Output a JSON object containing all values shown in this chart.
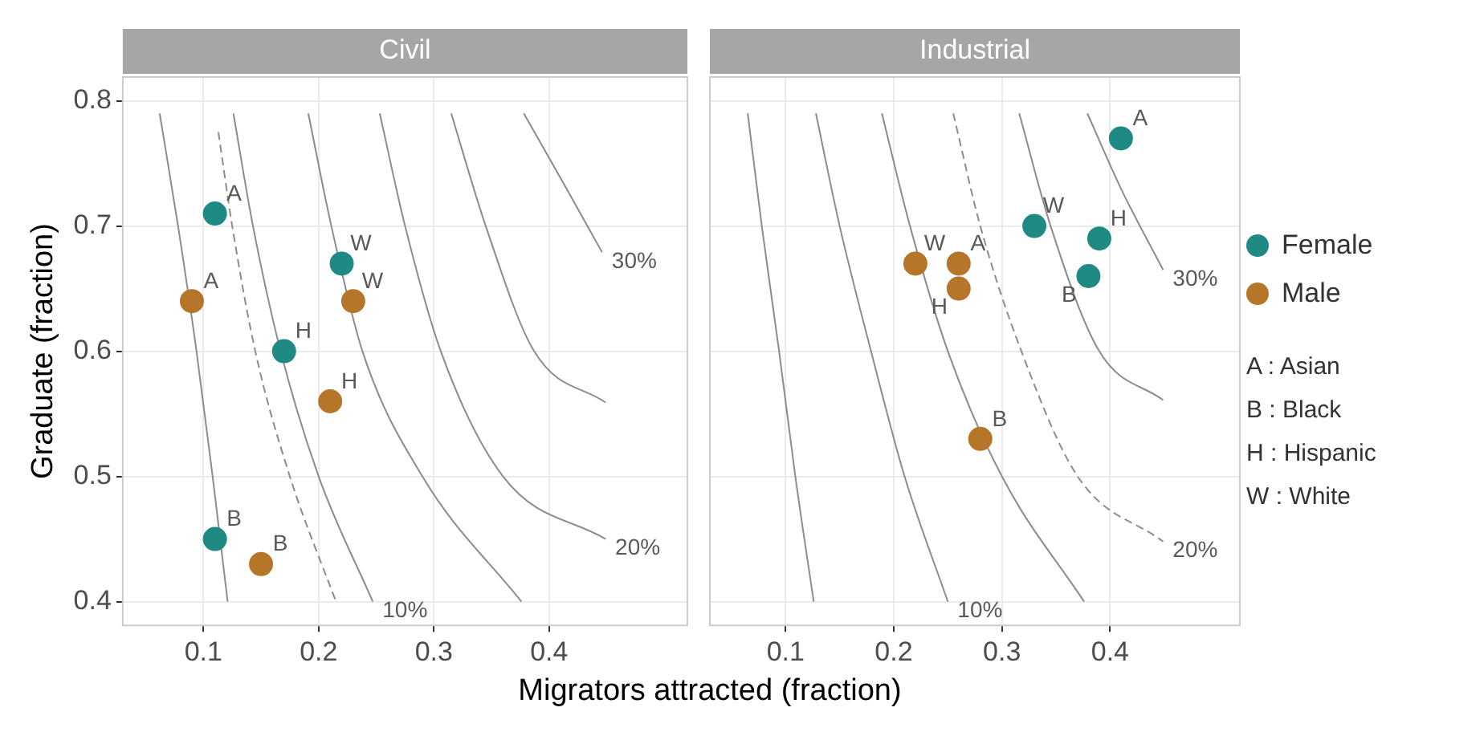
{
  "chart_data": [
    {
      "type": "scatter",
      "title": "Civil",
      "xlabel": "Migrators attracted (fraction)",
      "ylabel": "Graduate (fraction)",
      "xlim": [
        0.03,
        0.52
      ],
      "ylim": [
        0.381,
        0.819
      ],
      "xticks": [
        0.1,
        0.2,
        0.3,
        0.4
      ],
      "yticks": [
        0.4,
        0.5,
        0.6,
        0.7,
        0.8
      ],
      "grid": true,
      "legend": "right",
      "series": [
        {
          "type": "line",
          "color": "#8c8c8c",
          "x": [
            0.062,
            0.078,
            0.094,
            0.108,
            0.121
          ],
          "values": [
            0.79,
            0.7,
            0.6,
            0.5,
            0.4
          ]
        },
        {
          "type": "line",
          "name": "10%",
          "color": "#8c8c8c",
          "x": [
            0.126,
            0.143,
            0.167,
            0.2,
            0.247
          ],
          "values": [
            0.79,
            0.7,
            0.6,
            0.5,
            0.4
          ]
        },
        {
          "type": "line",
          "color": "#8c8c8c",
          "line_style": "dashed",
          "x": [
            0.113,
            0.125,
            0.145,
            0.175,
            0.215
          ],
          "values": [
            0.775,
            0.7,
            0.6,
            0.5,
            0.4
          ]
        },
        {
          "type": "line",
          "color": "#8c8c8c",
          "x": [
            0.191,
            0.211,
            0.238,
            0.29,
            0.376
          ],
          "values": [
            0.79,
            0.7,
            0.6,
            0.5,
            0.4
          ]
        },
        {
          "type": "line",
          "name": "20%",
          "color": "#8c8c8c",
          "x": [
            0.253,
            0.275,
            0.306,
            0.36,
            0.449
          ],
          "values": [
            0.79,
            0.7,
            0.6,
            0.5,
            0.45
          ]
        },
        {
          "type": "line",
          "color": "#8c8c8c",
          "x": [
            0.315,
            0.345,
            0.387,
            0.449
          ],
          "values": [
            0.79,
            0.7,
            0.6,
            0.559
          ]
        },
        {
          "type": "line",
          "name": "30%",
          "color": "#8c8c8c",
          "x": [
            0.378,
            0.415,
            0.446
          ],
          "values": [
            0.79,
            0.73,
            0.679
          ]
        },
        {
          "name": "Female",
          "color": "#1f8a84",
          "marker": "circle",
          "x": [
            0.11,
            0.22,
            0.17,
            0.11
          ],
          "values": [
            0.71,
            0.67,
            0.6,
            0.45
          ],
          "value_labels": [
            "A",
            "W",
            "H",
            "B"
          ]
        },
        {
          "name": "Male",
          "color": "#b5762a",
          "marker": "circle",
          "x": [
            0.09,
            0.23,
            0.21,
            0.15
          ],
          "values": [
            0.64,
            0.64,
            0.56,
            0.43
          ],
          "value_labels": [
            "A",
            "W",
            "H",
            "B"
          ]
        }
      ],
      "annotations": [
        "A : Asian",
        "B : Black",
        "H : Hispanic",
        "W : White"
      ]
    },
    {
      "type": "scatter",
      "title": "Industrial",
      "xlim": [
        0.03,
        0.52
      ],
      "ylim": [
        0.381,
        0.819
      ],
      "xticks": [
        0.1,
        0.2,
        0.3,
        0.4
      ],
      "yticks": [
        0.4,
        0.5,
        0.6,
        0.7,
        0.8
      ],
      "grid": true,
      "tick_labels": "x",
      "legend": "right",
      "series": [
        {
          "type": "line",
          "color": "#8c8c8c",
          "x": [
            0.065,
            0.078,
            0.094,
            0.109,
            0.126
          ],
          "values": [
            0.79,
            0.7,
            0.6,
            0.5,
            0.4
          ]
        },
        {
          "type": "line",
          "name": "10%",
          "color": "#8c8c8c",
          "x": [
            0.128,
            0.15,
            0.179,
            0.21,
            0.25
          ],
          "values": [
            0.79,
            0.7,
            0.6,
            0.5,
            0.4
          ]
        },
        {
          "type": "line",
          "color": "#8c8c8c",
          "x": [
            0.189,
            0.215,
            0.25,
            0.3,
            0.376
          ],
          "values": [
            0.79,
            0.7,
            0.6,
            0.5,
            0.4
          ]
        },
        {
          "type": "line",
          "name": "20%",
          "color": "#8c8c8c",
          "line_style": "dashed",
          "x": [
            0.255,
            0.28,
            0.318,
            0.37,
            0.449
          ],
          "values": [
            0.79,
            0.7,
            0.6,
            0.5,
            0.448
          ]
        },
        {
          "type": "line",
          "color": "#8c8c8c",
          "x": [
            0.316,
            0.345,
            0.39,
            0.449
          ],
          "values": [
            0.79,
            0.7,
            0.6,
            0.561
          ]
        },
        {
          "type": "line",
          "name": "30%",
          "color": "#8c8c8c",
          "x": [
            0.379,
            0.41,
            0.449
          ],
          "values": [
            0.79,
            0.73,
            0.665
          ]
        },
        {
          "name": "Female",
          "color": "#1f8a84",
          "marker": "circle",
          "x": [
            0.41,
            0.33,
            0.39,
            0.38
          ],
          "values": [
            0.77,
            0.7,
            0.69,
            0.66
          ],
          "value_labels": [
            "A",
            "W",
            "H",
            "B"
          ]
        },
        {
          "name": "Male",
          "color": "#b5762a",
          "marker": "circle",
          "x": [
            0.22,
            0.26,
            0.26,
            0.28
          ],
          "values": [
            0.67,
            0.67,
            0.65,
            0.53
          ],
          "value_labels": [
            "W",
            "A",
            "H",
            "B"
          ]
        }
      ]
    }
  ]
}
